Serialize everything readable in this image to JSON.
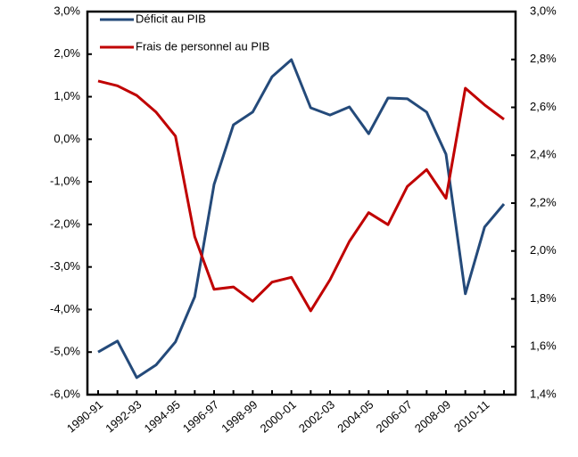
{
  "chart_data": {
    "type": "line",
    "categories": [
      "1990-91",
      null,
      "1992-93",
      null,
      "1994-95",
      null,
      "1996-97",
      null,
      "1998-99",
      null,
      "2000-01",
      null,
      "2002-03",
      null,
      "2004-05",
      null,
      "2006-07",
      null,
      "2008-09",
      null,
      "2010-11",
      null
    ],
    "series": [
      {
        "name": "Déficit au PIB",
        "color": "#244a7a",
        "values": [
          -5.0,
          -4.74,
          -5.6,
          -5.3,
          -4.76,
          -3.7,
          -1.06,
          0.34,
          0.64,
          1.47,
          1.87,
          0.74,
          0.57,
          0.76,
          0.13,
          0.97,
          0.95,
          0.64,
          -0.35,
          -3.63,
          -2.06,
          -1.52
        ]
      },
      {
        "name": "Frais de personnel au PIB",
        "color": "#c00000",
        "axis": "y2",
        "values": [
          2.71,
          2.69,
          2.65,
          2.58,
          2.48,
          2.06,
          1.84,
          1.85,
          1.79,
          1.87,
          1.89,
          1.75,
          1.88,
          2.04,
          2.16,
          2.11,
          2.27,
          2.34,
          2.22,
          2.68,
          2.61,
          2.55
        ]
      }
    ],
    "ylim": [
      -6,
      3
    ],
    "yticks": [
      {
        "value": -6,
        "label": "-6,0%"
      },
      {
        "value": -5,
        "label": "-5,0%"
      },
      {
        "value": -4,
        "label": "-4,0%"
      },
      {
        "value": -3,
        "label": "-3,0%"
      },
      {
        "value": -2,
        "label": "-2,0%"
      },
      {
        "value": -1,
        "label": "-1,0%"
      },
      {
        "value": 0,
        "label": "0,0%"
      },
      {
        "value": 1,
        "label": "1,0%"
      },
      {
        "value": 2,
        "label": "2,0%"
      },
      {
        "value": 3,
        "label": "3,0%"
      }
    ],
    "y2lim": [
      1.4,
      3.0
    ],
    "y2ticks": [
      {
        "value": 1.4,
        "label": "1,4%"
      },
      {
        "value": 1.6,
        "label": "1,6%"
      },
      {
        "value": 1.8,
        "label": "1,8%"
      },
      {
        "value": 2.0,
        "label": "2,0%"
      },
      {
        "value": 2.2,
        "label": "2,2%"
      },
      {
        "value": 2.4,
        "label": "2,4%"
      },
      {
        "value": 2.6,
        "label": "2,6%"
      },
      {
        "value": 2.8,
        "label": "2,8%"
      },
      {
        "value": 3.0,
        "label": "3,0%"
      }
    ],
    "legend": "upper-left"
  }
}
